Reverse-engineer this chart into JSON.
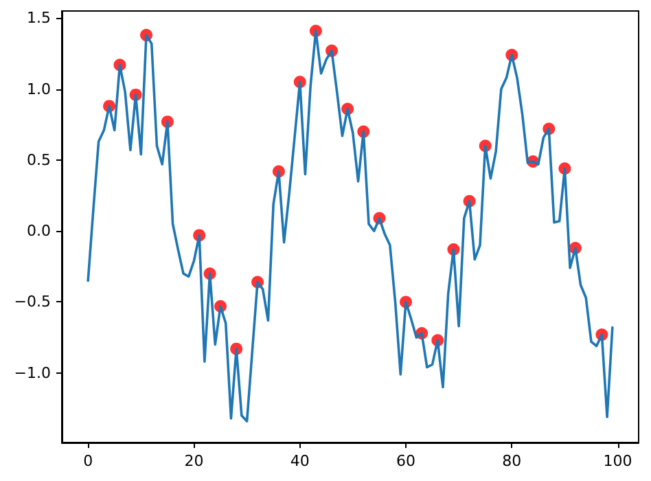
{
  "chart_data": {
    "type": "line",
    "x": [
      0,
      1,
      2,
      3,
      4,
      5,
      6,
      7,
      8,
      9,
      10,
      11,
      12,
      13,
      14,
      15,
      16,
      17,
      18,
      19,
      20,
      21,
      22,
      23,
      24,
      25,
      26,
      27,
      28,
      29,
      30,
      31,
      32,
      33,
      34,
      35,
      36,
      37,
      38,
      39,
      40,
      41,
      42,
      43,
      44,
      45,
      46,
      47,
      48,
      49,
      50,
      51,
      52,
      53,
      54,
      55,
      56,
      57,
      58,
      59,
      60,
      61,
      62,
      63,
      64,
      65,
      66,
      67,
      68,
      69,
      70,
      71,
      72,
      73,
      74,
      75,
      76,
      77,
      78,
      79,
      80,
      81,
      82,
      83,
      84,
      85,
      86,
      87,
      88,
      89,
      90,
      91,
      92,
      93,
      94,
      95,
      96,
      97,
      98,
      99
    ],
    "series": [
      {
        "color": "#1f77b4",
        "marker": "none",
        "values": [
          -0.35,
          0.15,
          0.63,
          0.71,
          0.88,
          0.71,
          1.17,
          0.98,
          0.57,
          0.96,
          0.54,
          1.38,
          1.32,
          0.6,
          0.47,
          0.77,
          0.05,
          -0.13,
          -0.3,
          -0.32,
          -0.21,
          -0.03,
          -0.92,
          -0.3,
          -0.8,
          -0.53,
          -0.65,
          -1.32,
          -0.83,
          -1.3,
          -1.34,
          -0.85,
          -0.36,
          -0.41,
          -0.63,
          0.19,
          0.42,
          -0.08,
          0.27,
          0.66,
          1.05,
          0.4,
          1.02,
          1.41,
          1.11,
          1.21,
          1.27,
          0.98,
          0.67,
          0.86,
          0.69,
          0.35,
          0.7,
          0.05,
          0.0,
          0.09,
          -0.02,
          -0.1,
          -0.5,
          -1.01,
          -0.5,
          -0.62,
          -0.75,
          -0.72,
          -0.96,
          -0.94,
          -0.77,
          -1.1,
          -0.44,
          -0.13,
          -0.67,
          0.09,
          0.21,
          -0.2,
          -0.1,
          0.6,
          0.37,
          0.56,
          1.0,
          1.08,
          1.24,
          1.08,
          0.82,
          0.48,
          0.49,
          0.47,
          0.66,
          0.72,
          0.06,
          0.07,
          0.44,
          -0.26,
          -0.12,
          -0.38,
          -0.47,
          -0.78,
          -0.81,
          -0.73,
          -1.31,
          -0.68
        ]
      },
      {
        "type": "scatter",
        "color": "#ff0000",
        "marker": "circle",
        "x": [
          4,
          6,
          9,
          11,
          15,
          21,
          23,
          25,
          28,
          32,
          36,
          40,
          43,
          46,
          49,
          52,
          55,
          60,
          63,
          66,
          69,
          72,
          75,
          80,
          84,
          87,
          90,
          92,
          97
        ],
        "values": [
          0.88,
          1.17,
          0.96,
          1.38,
          0.77,
          -0.03,
          -0.3,
          -0.53,
          -0.83,
          -0.36,
          0.42,
          1.05,
          1.41,
          1.27,
          0.86,
          0.7,
          0.09,
          -0.5,
          -0.72,
          -0.77,
          -0.13,
          0.21,
          0.6,
          1.24,
          0.49,
          0.72,
          0.44,
          -0.12,
          -0.73
        ]
      }
    ],
    "xlim": [
      -4.95,
      103.95
    ],
    "ylim": [
      -1.49,
      1.55
    ],
    "xticks": [
      0,
      20,
      40,
      60,
      80,
      100
    ],
    "yticks": [
      {
        "value": -1,
        "label": "−1.0"
      },
      {
        "value": -0.5,
        "label": "−0.5"
      },
      {
        "value": 0,
        "label": "0.0"
      },
      {
        "value": 0.5,
        "label": "0.5"
      },
      {
        "value": 1,
        "label": "1.0"
      },
      {
        "value": 1.5,
        "label": "1.5"
      }
    ],
    "grid": false
  }
}
